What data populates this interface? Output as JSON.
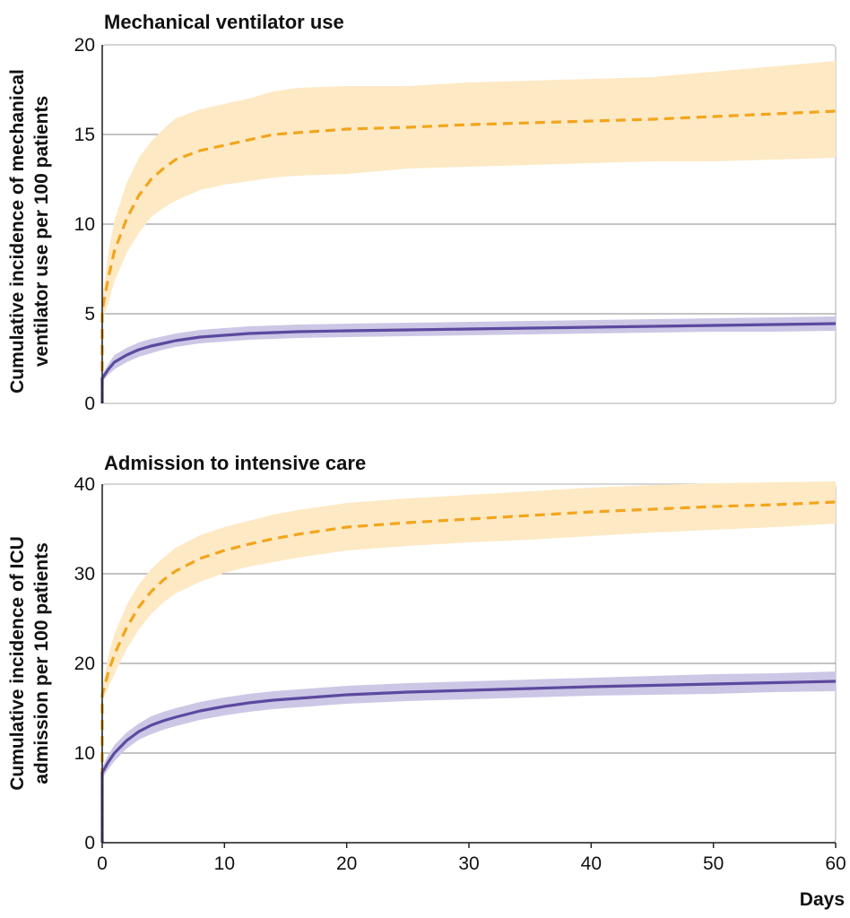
{
  "xlabel": "Days",
  "colors": {
    "orange_line": "#f2a51b",
    "orange_band": "#fde9c4",
    "purple_line": "#5b4a9e",
    "purple_band": "#cdc7e6"
  },
  "chart_data": [
    {
      "type": "line",
      "title": "Mechanical ventilator use",
      "ylabel_lines": [
        "Cumulative incidence of mechanical",
        "ventilator use per 100 patients"
      ],
      "xlabel": "",
      "xlim": [
        0,
        60
      ],
      "ylim": [
        0,
        20
      ],
      "xticks": [
        "0",
        "10",
        "20",
        "30",
        "40",
        "50",
        "60"
      ],
      "yticks": [
        "0",
        "5",
        "10",
        "15",
        "20"
      ],
      "grid": "horizontal",
      "series": [
        {
          "style": "dashed",
          "color": "orange",
          "x": [
            0,
            0.5,
            1,
            2,
            3,
            4,
            5,
            6,
            8,
            10,
            12,
            14,
            16,
            20,
            25,
            30,
            35,
            40,
            45,
            50,
            55,
            60
          ],
          "y": [
            5.2,
            7.0,
            8.5,
            10.3,
            11.6,
            12.5,
            13.1,
            13.6,
            14.1,
            14.4,
            14.7,
            15.0,
            15.1,
            15.3,
            15.4,
            15.55,
            15.65,
            15.75,
            15.85,
            16.0,
            16.15,
            16.3
          ],
          "lower": [
            4.6,
            5.6,
            6.8,
            8.4,
            9.5,
            10.4,
            10.9,
            11.3,
            11.9,
            12.2,
            12.4,
            12.6,
            12.7,
            12.8,
            13.1,
            13.2,
            13.3,
            13.4,
            13.5,
            13.5,
            13.6,
            13.7
          ],
          "upper": [
            5.8,
            8.4,
            10.2,
            12.3,
            13.7,
            14.6,
            15.3,
            15.9,
            16.4,
            16.7,
            17.0,
            17.4,
            17.6,
            17.7,
            17.7,
            17.9,
            18.0,
            18.1,
            18.2,
            18.5,
            18.8,
            19.1
          ]
        },
        {
          "style": "solid",
          "color": "purple",
          "x": [
            0,
            0.5,
            1,
            2,
            3,
            4,
            5,
            6,
            8,
            10,
            12,
            14,
            16,
            20,
            25,
            30,
            35,
            40,
            45,
            50,
            55,
            60
          ],
          "y": [
            1.4,
            1.9,
            2.3,
            2.7,
            3.0,
            3.2,
            3.35,
            3.5,
            3.7,
            3.8,
            3.9,
            3.95,
            4.0,
            4.05,
            4.1,
            4.15,
            4.2,
            4.25,
            4.3,
            4.35,
            4.4,
            4.45
          ],
          "lower": [
            1.2,
            1.6,
            1.9,
            2.3,
            2.6,
            2.8,
            3.0,
            3.15,
            3.35,
            3.45,
            3.55,
            3.6,
            3.65,
            3.7,
            3.75,
            3.8,
            3.85,
            3.9,
            3.95,
            4.0,
            4.0,
            4.05
          ],
          "upper": [
            1.6,
            2.2,
            2.7,
            3.1,
            3.4,
            3.6,
            3.75,
            3.9,
            4.1,
            4.2,
            4.3,
            4.35,
            4.4,
            4.45,
            4.5,
            4.55,
            4.6,
            4.65,
            4.7,
            4.75,
            4.8,
            4.85
          ]
        }
      ]
    },
    {
      "type": "line",
      "title": "Admission to intensive care",
      "ylabel_lines": [
        "Cumulative incidence of ICU",
        "admission per 100 patients"
      ],
      "xlabel": "Days",
      "xlim": [
        0,
        60
      ],
      "ylim": [
        0,
        40
      ],
      "xticks": [
        "0",
        "10",
        "20",
        "30",
        "40",
        "50",
        "60"
      ],
      "yticks": [
        "0",
        "10",
        "20",
        "30",
        "40"
      ],
      "grid": "horizontal",
      "series": [
        {
          "style": "dashed",
          "color": "orange",
          "x": [
            0,
            0.5,
            1,
            2,
            3,
            4,
            5,
            6,
            8,
            10,
            12,
            14,
            16,
            20,
            25,
            30,
            35,
            40,
            45,
            50,
            55,
            60
          ],
          "y": [
            16.5,
            19.0,
            21.0,
            24.0,
            26.3,
            28.0,
            29.3,
            30.3,
            31.7,
            32.6,
            33.3,
            33.9,
            34.4,
            35.2,
            35.7,
            36.1,
            36.5,
            36.9,
            37.2,
            37.5,
            37.7,
            38.0
          ],
          "lower": [
            15.8,
            17.3,
            18.8,
            21.6,
            23.8,
            25.5,
            26.8,
            27.8,
            29.1,
            30.1,
            30.8,
            31.3,
            31.8,
            32.6,
            33.1,
            33.5,
            33.8,
            34.2,
            34.6,
            34.9,
            35.2,
            35.6
          ],
          "upper": [
            17.2,
            20.8,
            23.3,
            26.5,
            28.8,
            30.5,
            31.8,
            32.9,
            34.3,
            35.2,
            35.9,
            36.6,
            37.1,
            37.9,
            38.4,
            38.8,
            39.2,
            39.6,
            39.9,
            40.1,
            40.2,
            40.3
          ]
        },
        {
          "style": "solid",
          "color": "purple",
          "x": [
            0,
            0.5,
            1,
            2,
            3,
            4,
            5,
            6,
            8,
            10,
            12,
            14,
            16,
            20,
            25,
            30,
            35,
            40,
            45,
            50,
            55,
            60
          ],
          "y": [
            7.8,
            9.0,
            10.0,
            11.4,
            12.4,
            13.1,
            13.6,
            14.0,
            14.7,
            15.2,
            15.6,
            15.9,
            16.1,
            16.5,
            16.8,
            17.0,
            17.2,
            17.4,
            17.55,
            17.7,
            17.85,
            18.0
          ],
          "lower": [
            7.2,
            8.2,
            9.1,
            10.5,
            11.5,
            12.1,
            12.6,
            13.0,
            13.7,
            14.2,
            14.6,
            14.9,
            15.1,
            15.5,
            15.8,
            16.0,
            16.2,
            16.4,
            16.5,
            16.6,
            16.8,
            16.9
          ],
          "upper": [
            8.4,
            9.8,
            10.9,
            12.3,
            13.3,
            14.1,
            14.6,
            15.0,
            15.7,
            16.2,
            16.6,
            16.9,
            17.1,
            17.5,
            17.8,
            18.0,
            18.2,
            18.4,
            18.6,
            18.8,
            18.9,
            19.1
          ]
        }
      ]
    }
  ]
}
